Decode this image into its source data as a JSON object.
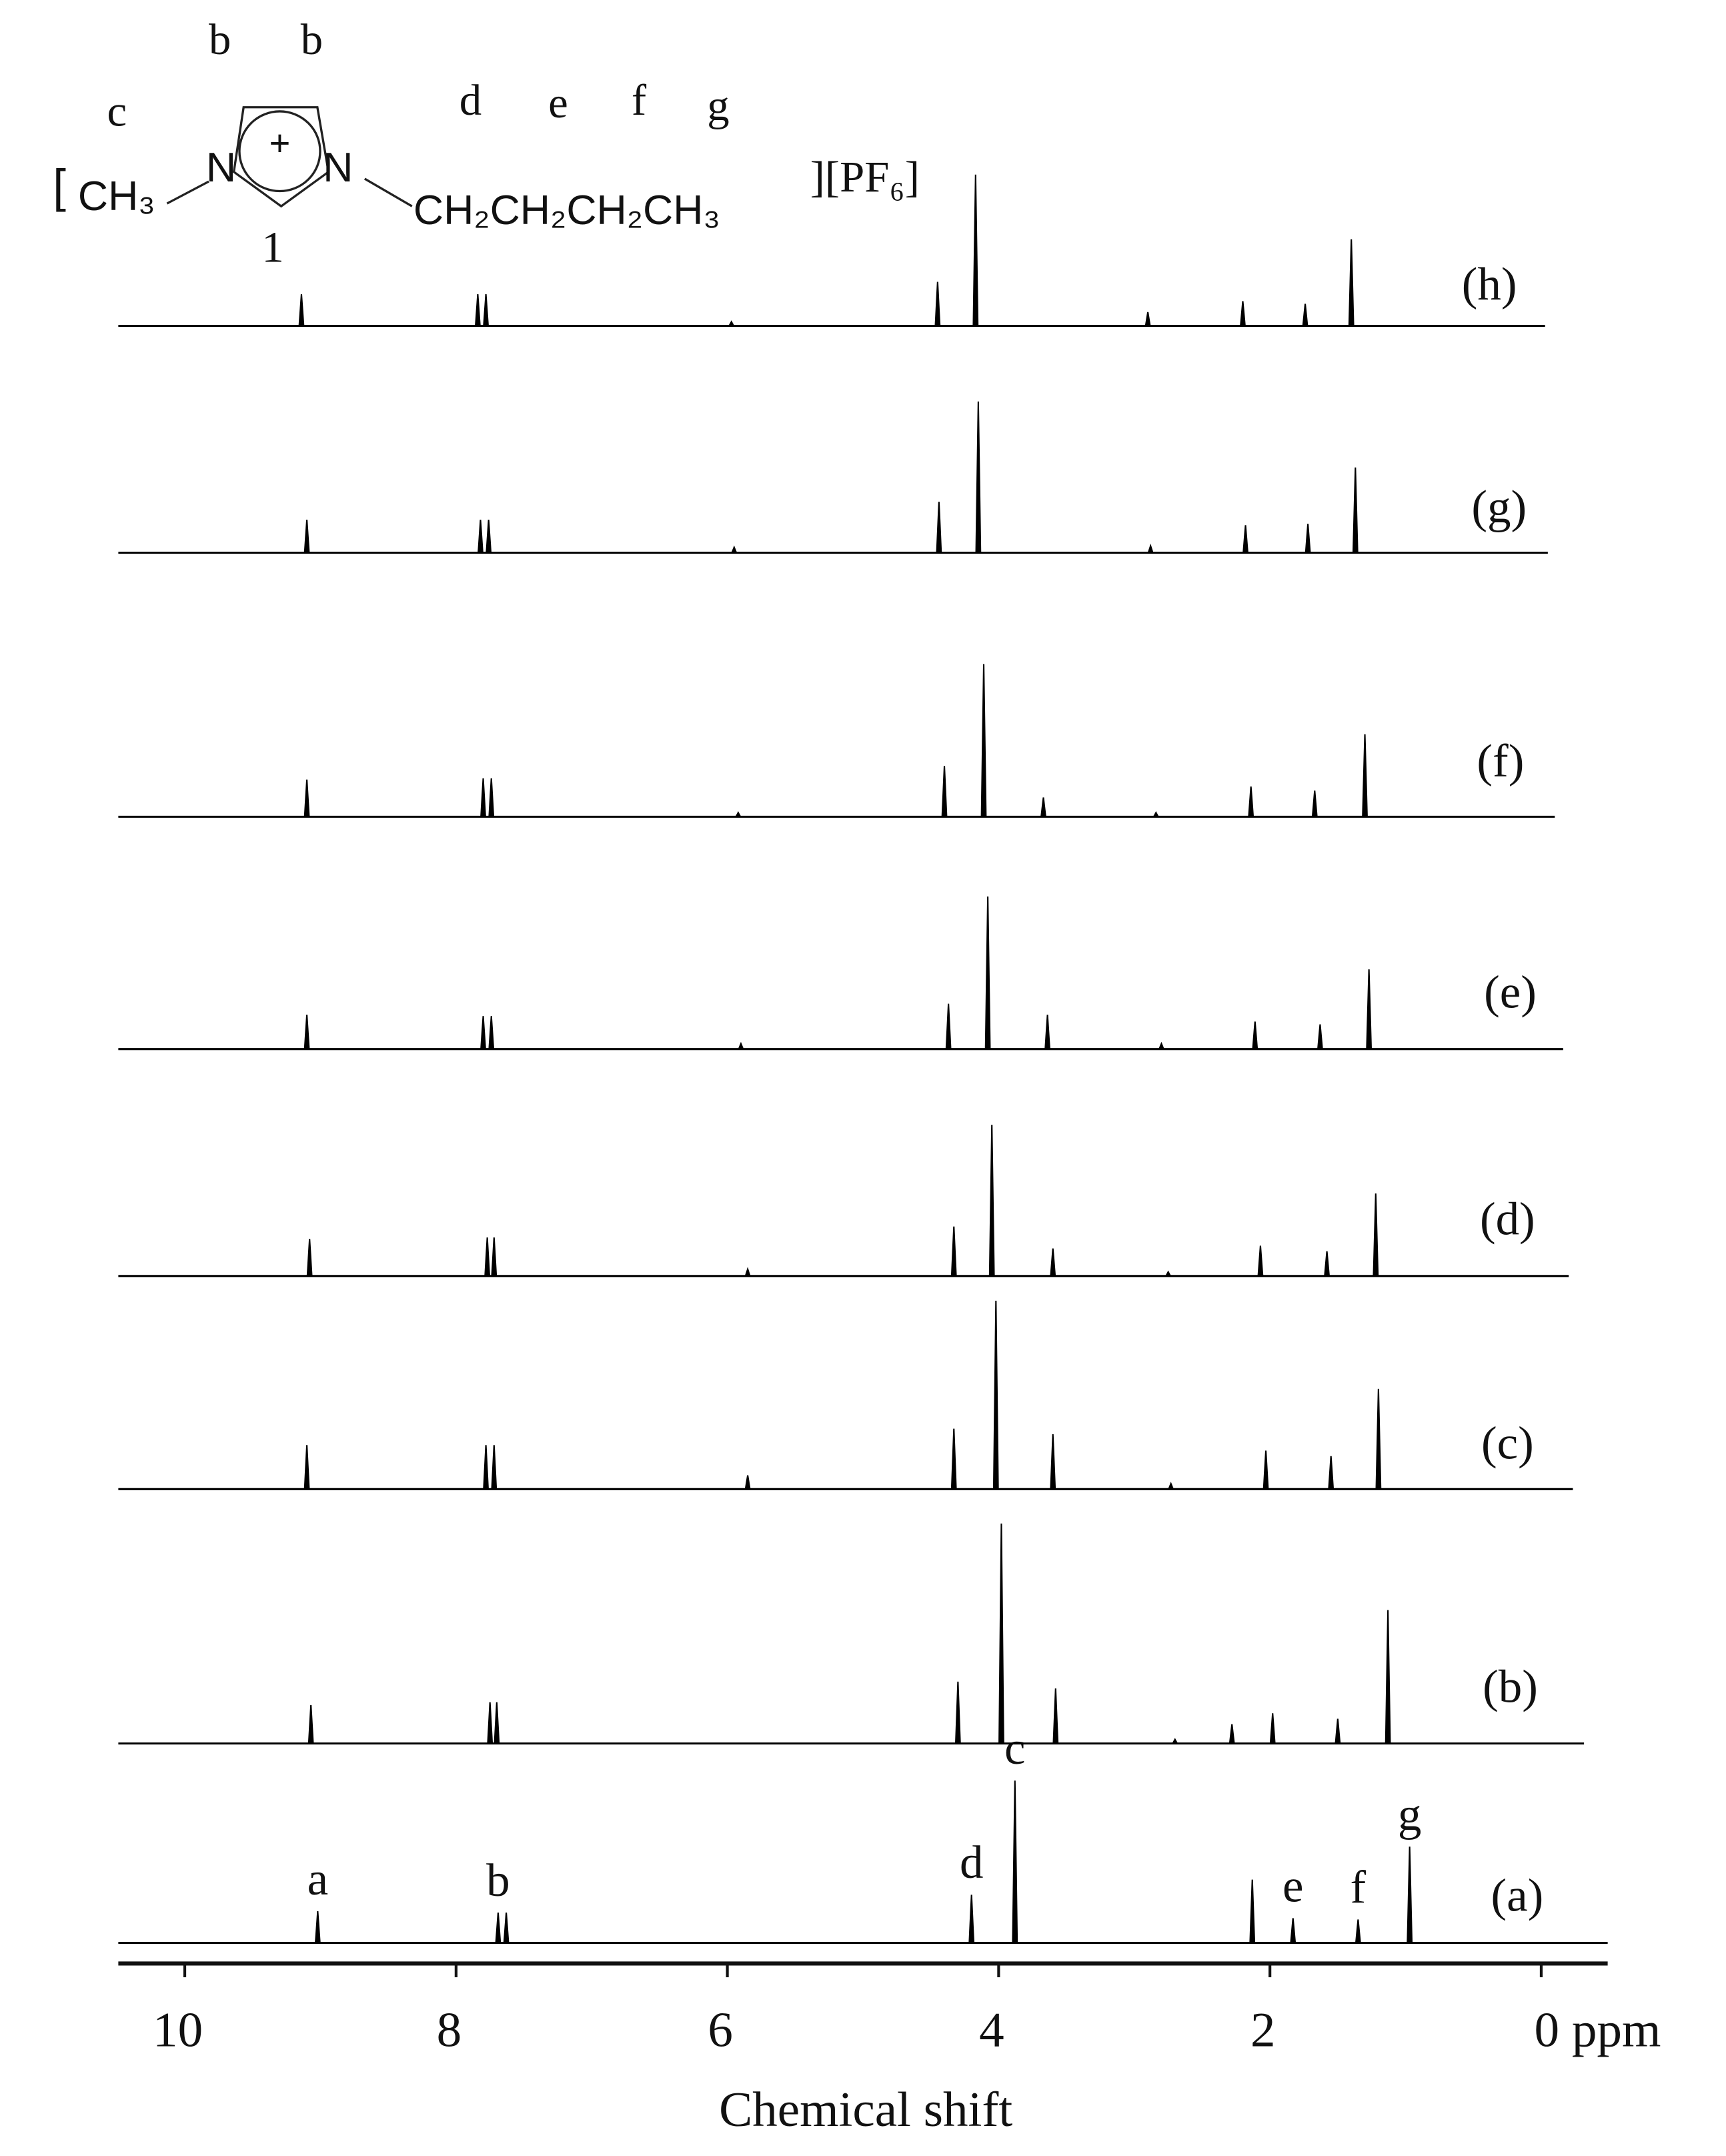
{
  "chart_data": {
    "type": "nmr-stack",
    "x_label": "Chemical shift",
    "xlim": [
      10.49,
      -0.49
    ],
    "xticks": [
      10,
      8,
      6,
      4,
      2,
      {
        "value": 0,
        "label": "0 ppm"
      }
    ],
    "color": "#000000",
    "structure": {
      "open": "[",
      "methyl": "CH₃",
      "n1": "N",
      "n2": "N",
      "charge": "+",
      "chain": "CH₂CH₂CH₂CH₃",
      "anion": "][PF₆]",
      "position": "1",
      "labels": [
        "b",
        "b",
        "c",
        "d",
        "e",
        "f",
        "g"
      ]
    },
    "series": [
      {
        "name": "(a)",
        "x": [
          9.02,
          7.69,
          7.63,
          4.2,
          3.88,
          2.13,
          1.83,
          1.35,
          0.97
        ],
        "values": [
          23,
          22,
          22,
          35,
          118,
          46,
          18,
          17,
          70
        ],
        "peak_labels": [
          "a",
          "b",
          null,
          "d",
          "c",
          null,
          "e",
          "f",
          "g"
        ]
      },
      {
        "name": "(b)",
        "x": [
          9.07,
          7.75,
          7.7,
          4.3,
          3.98,
          3.58,
          2.7,
          2.28,
          1.98,
          1.5,
          1.13
        ],
        "values": [
          28,
          30,
          30,
          45,
          160,
          40,
          3,
          14,
          22,
          18,
          97
        ]
      },
      {
        "name": "(c)",
        "x": [
          9.1,
          7.78,
          7.72,
          5.85,
          4.33,
          4.02,
          3.6,
          2.73,
          2.03,
          1.55,
          1.2
        ],
        "values": [
          32,
          32,
          32,
          10,
          44,
          137,
          40,
          4,
          28,
          24,
          73
        ]
      },
      {
        "name": "(d)",
        "x": [
          9.08,
          7.77,
          7.72,
          5.85,
          4.33,
          4.05,
          3.6,
          2.75,
          2.07,
          1.58,
          1.22
        ],
        "values": [
          27,
          28,
          28,
          5,
          36,
          110,
          20,
          3,
          22,
          18,
          60
        ]
      },
      {
        "name": "(e)",
        "x": [
          9.1,
          7.8,
          7.74,
          5.9,
          4.37,
          4.08,
          3.64,
          2.8,
          2.11,
          1.63,
          1.27
        ],
        "values": [
          25,
          24,
          24,
          4,
          33,
          111,
          25,
          4,
          20,
          18,
          58
        ]
      },
      {
        "name": "(f)",
        "x": [
          9.1,
          7.8,
          7.74,
          5.92,
          4.4,
          4.11,
          3.67,
          2.84,
          2.14,
          1.67,
          1.3
        ],
        "values": [
          27,
          28,
          28,
          3,
          37,
          111,
          14,
          3,
          22,
          19,
          60
        ]
      },
      {
        "name": "(g)",
        "x": [
          9.1,
          7.82,
          7.76,
          5.95,
          4.44,
          4.15,
          2.88,
          2.18,
          1.72,
          1.37
        ],
        "values": [
          24,
          24,
          24,
          4,
          37,
          110,
          5,
          20,
          21,
          62
        ]
      },
      {
        "name": "(h)",
        "x": [
          9.14,
          7.84,
          7.78,
          5.97,
          4.45,
          4.17,
          2.9,
          2.2,
          1.74,
          1.4
        ],
        "values": [
          23,
          23,
          23,
          3,
          32,
          110,
          10,
          18,
          16,
          63
        ]
      }
    ]
  }
}
